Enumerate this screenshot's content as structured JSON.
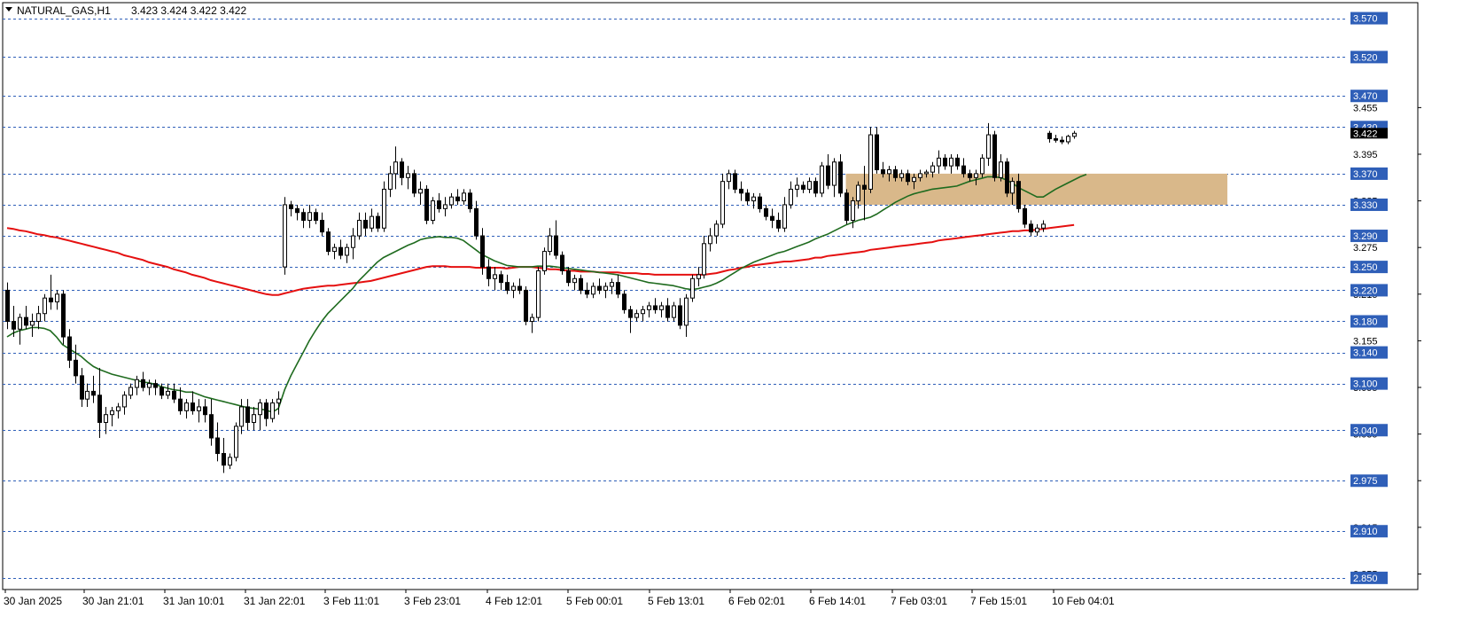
{
  "header": {
    "symbol": "NATURAL_GAS,H1",
    "ohlc": "3.423 3.424 3.422 3.422"
  },
  "colors": {
    "up_candle": "#ffffff",
    "down_candle": "#000000",
    "ma_fast": "#1f6b1f",
    "ma_slow": "#e51010",
    "level_line": "#2f5fb8",
    "level_label_bg": "#2f5fb8",
    "zone_fill": "#d9b88a"
  },
  "chart_data": {
    "type": "candlestick",
    "ylim": [
      2.835,
      3.59
    ],
    "x_tick_labels": [
      "30 Jan 2025",
      "30 Jan 21:01",
      "31 Jan 10:01",
      "31 Jan 22:01",
      "3 Feb 11:01",
      "3 Feb 23:01",
      "4 Feb 12:01",
      "5 Feb 00:01",
      "5 Feb 13:01",
      "6 Feb 02:01",
      "6 Feb 14:01",
      "7 Feb 03:01",
      "7 Feb 15:01",
      "10 Feb 04:01"
    ],
    "y_tick_labels": [
      "3.455",
      "3.395",
      "3.335",
      "3.275",
      "3.215",
      "3.155",
      "3.095",
      "3.035",
      "2.975",
      "2.915",
      "2.855"
    ],
    "level_labels": [
      "3.570",
      "3.520",
      "3.470",
      "3.430",
      "3.370",
      "3.330",
      "3.290",
      "3.250",
      "3.220",
      "3.180",
      "3.140",
      "3.100",
      "3.040",
      "2.975",
      "2.910",
      "2.850"
    ],
    "current_price_label": "3.422",
    "level_values": [
      3.57,
      3.52,
      3.47,
      3.43,
      3.37,
      3.33,
      3.29,
      3.25,
      3.22,
      3.18,
      3.14,
      3.1,
      3.04,
      2.975,
      2.91,
      2.85
    ],
    "zone": {
      "low": 3.33,
      "high": 3.37,
      "start_index": 136,
      "end_index": 172
    },
    "candles": [
      [
        3.22,
        3.23,
        3.17,
        3.18
      ],
      [
        3.18,
        3.2,
        3.16,
        3.17
      ],
      [
        3.17,
        3.19,
        3.15,
        3.185
      ],
      [
        3.185,
        3.2,
        3.17,
        3.175
      ],
      [
        3.175,
        3.19,
        3.16,
        3.18
      ],
      [
        3.18,
        3.2,
        3.17,
        3.19
      ],
      [
        3.19,
        3.215,
        3.18,
        3.21
      ],
      [
        3.21,
        3.24,
        3.195,
        3.205
      ],
      [
        3.205,
        3.22,
        3.195,
        3.215
      ],
      [
        3.215,
        3.22,
        3.15,
        3.16
      ],
      [
        3.16,
        3.17,
        3.12,
        3.13
      ],
      [
        3.13,
        3.15,
        3.1,
        3.11
      ],
      [
        3.11,
        3.12,
        3.07,
        3.08
      ],
      [
        3.08,
        3.1,
        3.07,
        3.09
      ],
      [
        3.09,
        3.11,
        3.075,
        3.085
      ],
      [
        3.085,
        3.12,
        3.03,
        3.05
      ],
      [
        3.05,
        3.07,
        3.035,
        3.06
      ],
      [
        3.06,
        3.07,
        3.045,
        3.065
      ],
      [
        3.065,
        3.075,
        3.055,
        3.07
      ],
      [
        3.07,
        3.09,
        3.06,
        3.085
      ],
      [
        3.085,
        3.1,
        3.08,
        3.095
      ],
      [
        3.095,
        3.11,
        3.085,
        3.105
      ],
      [
        3.105,
        3.115,
        3.09,
        3.095
      ],
      [
        3.095,
        3.105,
        3.085,
        3.1
      ],
      [
        3.1,
        3.105,
        3.085,
        3.095
      ],
      [
        3.095,
        3.1,
        3.08,
        3.085
      ],
      [
        3.085,
        3.1,
        3.08,
        3.09
      ],
      [
        3.09,
        3.1,
        3.075,
        3.08
      ],
      [
        3.08,
        3.095,
        3.06,
        3.065
      ],
      [
        3.065,
        3.08,
        3.055,
        3.075
      ],
      [
        3.075,
        3.09,
        3.06,
        3.065
      ],
      [
        3.065,
        3.08,
        3.05,
        3.07
      ],
      [
        3.07,
        3.08,
        3.05,
        3.06
      ],
      [
        3.06,
        3.08,
        3.02,
        3.03
      ],
      [
        3.03,
        3.05,
        3.0,
        3.01
      ],
      [
        3.01,
        3.03,
        2.985,
        2.995
      ],
      [
        2.995,
        3.01,
        2.99,
        3.005
      ],
      [
        3.005,
        3.05,
        3.0,
        3.045
      ],
      [
        3.045,
        3.08,
        3.035,
        3.07
      ],
      [
        3.07,
        3.08,
        3.04,
        3.05
      ],
      [
        3.05,
        3.07,
        3.04,
        3.06
      ],
      [
        3.06,
        3.08,
        3.04,
        3.075
      ],
      [
        3.075,
        3.08,
        3.045,
        3.055
      ],
      [
        3.055,
        3.08,
        3.05,
        3.075
      ],
      [
        3.075,
        3.09,
        3.06,
        3.08
      ],
      [
        3.25,
        3.34,
        3.24,
        3.33
      ],
      [
        3.33,
        3.335,
        3.315,
        3.325
      ],
      [
        3.325,
        3.33,
        3.31,
        3.32
      ],
      [
        3.32,
        3.325,
        3.3,
        3.31
      ],
      [
        3.31,
        3.33,
        3.3,
        3.32
      ],
      [
        3.32,
        3.325,
        3.305,
        3.31
      ],
      [
        3.31,
        3.32,
        3.29,
        3.295
      ],
      [
        3.295,
        3.3,
        3.265,
        3.27
      ],
      [
        3.27,
        3.28,
        3.26,
        3.275
      ],
      [
        3.275,
        3.285,
        3.26,
        3.265
      ],
      [
        3.265,
        3.28,
        3.255,
        3.275
      ],
      [
        3.275,
        3.3,
        3.26,
        3.29
      ],
      [
        3.29,
        3.32,
        3.285,
        3.31
      ],
      [
        3.31,
        3.32,
        3.29,
        3.3
      ],
      [
        3.3,
        3.325,
        3.295,
        3.315
      ],
      [
        3.315,
        3.32,
        3.295,
        3.3
      ],
      [
        3.3,
        3.36,
        3.295,
        3.35
      ],
      [
        3.35,
        3.38,
        3.34,
        3.37
      ],
      [
        3.37,
        3.405,
        3.35,
        3.385
      ],
      [
        3.385,
        3.39,
        3.355,
        3.365
      ],
      [
        3.365,
        3.38,
        3.35,
        3.37
      ],
      [
        3.37,
        3.375,
        3.34,
        3.345
      ],
      [
        3.345,
        3.36,
        3.33,
        3.35
      ],
      [
        3.35,
        3.355,
        3.305,
        3.31
      ],
      [
        3.31,
        3.34,
        3.305,
        3.335
      ],
      [
        3.335,
        3.345,
        3.32,
        3.325
      ],
      [
        3.325,
        3.34,
        3.315,
        3.33
      ],
      [
        3.33,
        3.345,
        3.325,
        3.34
      ],
      [
        3.34,
        3.35,
        3.33,
        3.335
      ],
      [
        3.335,
        3.35,
        3.33,
        3.345
      ],
      [
        3.345,
        3.35,
        3.32,
        3.325
      ],
      [
        3.325,
        3.335,
        3.285,
        3.29
      ],
      [
        3.29,
        3.3,
        3.24,
        3.25
      ],
      [
        3.25,
        3.26,
        3.225,
        3.235
      ],
      [
        3.235,
        3.25,
        3.22,
        3.24
      ],
      [
        3.24,
        3.245,
        3.22,
        3.23
      ],
      [
        3.23,
        3.24,
        3.215,
        3.22
      ],
      [
        3.22,
        3.23,
        3.21,
        3.225
      ],
      [
        3.225,
        3.235,
        3.215,
        3.22
      ],
      [
        3.22,
        3.225,
        3.175,
        3.18
      ],
      [
        3.18,
        3.19,
        3.165,
        3.185
      ],
      [
        3.185,
        3.25,
        3.18,
        3.245
      ],
      [
        3.245,
        3.275,
        3.24,
        3.27
      ],
      [
        3.27,
        3.3,
        3.265,
        3.29
      ],
      [
        3.29,
        3.31,
        3.26,
        3.265
      ],
      [
        3.265,
        3.27,
        3.24,
        3.245
      ],
      [
        3.245,
        3.25,
        3.225,
        3.23
      ],
      [
        3.23,
        3.24,
        3.22,
        3.235
      ],
      [
        3.235,
        3.24,
        3.215,
        3.22
      ],
      [
        3.22,
        3.23,
        3.21,
        3.215
      ],
      [
        3.215,
        3.23,
        3.21,
        3.225
      ],
      [
        3.225,
        3.235,
        3.215,
        3.22
      ],
      [
        3.22,
        3.23,
        3.21,
        3.225
      ],
      [
        3.225,
        3.235,
        3.215,
        3.23
      ],
      [
        3.23,
        3.24,
        3.21,
        3.215
      ],
      [
        3.215,
        3.22,
        3.19,
        3.195
      ],
      [
        3.195,
        3.2,
        3.165,
        3.185
      ],
      [
        3.185,
        3.195,
        3.18,
        3.19
      ],
      [
        3.19,
        3.2,
        3.18,
        3.195
      ],
      [
        3.195,
        3.205,
        3.185,
        3.2
      ],
      [
        3.2,
        3.21,
        3.19,
        3.195
      ],
      [
        3.195,
        3.205,
        3.185,
        3.2
      ],
      [
        3.2,
        3.21,
        3.18,
        3.185
      ],
      [
        3.185,
        3.205,
        3.18,
        3.2
      ],
      [
        3.2,
        3.21,
        3.17,
        3.175
      ],
      [
        3.175,
        3.215,
        3.16,
        3.21
      ],
      [
        3.21,
        3.24,
        3.205,
        3.235
      ],
      [
        3.235,
        3.25,
        3.225,
        3.24
      ],
      [
        3.24,
        3.29,
        3.235,
        3.28
      ],
      [
        3.28,
        3.3,
        3.27,
        3.29
      ],
      [
        3.29,
        3.31,
        3.28,
        3.305
      ],
      [
        3.305,
        3.37,
        3.3,
        3.36
      ],
      [
        3.36,
        3.375,
        3.35,
        3.37
      ],
      [
        3.37,
        3.375,
        3.345,
        3.35
      ],
      [
        3.35,
        3.36,
        3.335,
        3.345
      ],
      [
        3.345,
        3.35,
        3.33,
        3.335
      ],
      [
        3.335,
        3.345,
        3.325,
        3.34
      ],
      [
        3.34,
        3.345,
        3.32,
        3.325
      ],
      [
        3.325,
        3.33,
        3.31,
        3.315
      ],
      [
        3.315,
        3.325,
        3.3,
        3.31
      ],
      [
        3.31,
        3.32,
        3.295,
        3.3
      ],
      [
        3.3,
        3.34,
        3.295,
        3.33
      ],
      [
        3.33,
        3.36,
        3.325,
        3.35
      ],
      [
        3.35,
        3.365,
        3.34,
        3.355
      ],
      [
        3.355,
        3.36,
        3.345,
        3.35
      ],
      [
        3.35,
        3.365,
        3.345,
        3.36
      ],
      [
        3.36,
        3.365,
        3.34,
        3.345
      ],
      [
        3.345,
        3.385,
        3.34,
        3.38
      ],
      [
        3.38,
        3.395,
        3.35,
        3.355
      ],
      [
        3.355,
        3.39,
        3.34,
        3.385
      ],
      [
        3.385,
        3.395,
        3.34,
        3.345
      ],
      [
        3.345,
        3.35,
        3.305,
        3.31
      ],
      [
        3.31,
        3.34,
        3.3,
        3.335
      ],
      [
        3.335,
        3.36,
        3.325,
        3.355
      ],
      [
        3.355,
        3.38,
        3.31,
        3.35
      ],
      [
        3.35,
        3.43,
        3.345,
        3.42
      ],
      [
        3.42,
        3.43,
        3.37,
        3.375
      ],
      [
        3.375,
        3.385,
        3.365,
        3.37
      ],
      [
        3.37,
        3.38,
        3.36,
        3.375
      ],
      [
        3.375,
        3.38,
        3.36,
        3.365
      ],
      [
        3.365,
        3.375,
        3.36,
        3.37
      ],
      [
        3.37,
        3.375,
        3.355,
        3.36
      ],
      [
        3.36,
        3.37,
        3.35,
        3.365
      ],
      [
        3.365,
        3.375,
        3.36,
        3.37
      ],
      [
        3.37,
        3.375,
        3.365,
        3.372
      ],
      [
        3.372,
        3.385,
        3.365,
        3.38
      ],
      [
        3.38,
        3.4,
        3.37,
        3.39
      ],
      [
        3.39,
        3.395,
        3.375,
        3.38
      ],
      [
        3.38,
        3.395,
        3.37,
        3.39
      ],
      [
        3.39,
        3.395,
        3.375,
        3.38
      ],
      [
        3.38,
        3.39,
        3.365,
        3.37
      ],
      [
        3.37,
        3.375,
        3.36,
        3.365
      ],
      [
        3.365,
        3.375,
        3.355,
        3.37
      ],
      [
        3.37,
        3.395,
        3.365,
        3.39
      ],
      [
        3.39,
        3.435,
        3.38,
        3.42
      ],
      [
        3.42,
        3.425,
        3.36,
        3.365
      ],
      [
        3.365,
        3.395,
        3.36,
        3.385
      ],
      [
        3.385,
        3.39,
        3.34,
        3.345
      ],
      [
        3.345,
        3.365,
        3.33,
        3.36
      ],
      [
        3.36,
        3.37,
        3.32,
        3.325
      ],
      [
        3.325,
        3.33,
        3.3,
        3.305
      ],
      [
        3.305,
        3.31,
        3.29,
        3.295
      ],
      [
        3.295,
        3.305,
        3.29,
        3.3
      ],
      [
        3.3,
        3.31,
        3.295,
        3.305
      ],
      [
        3.422,
        3.425,
        3.41,
        3.415
      ],
      [
        3.415,
        3.42,
        3.41,
        3.413
      ],
      [
        3.413,
        3.418,
        3.408,
        3.411
      ],
      [
        3.411,
        3.42,
        3.408,
        3.418
      ],
      [
        3.418,
        3.425,
        3.415,
        3.422
      ]
    ],
    "ma_fast": [
      3.16,
      3.165,
      3.168,
      3.17,
      3.172,
      3.172,
      3.171,
      3.168,
      3.16,
      3.15,
      3.145,
      3.14,
      3.135,
      3.128,
      3.122,
      3.118,
      3.115,
      3.112,
      3.11,
      3.108,
      3.106,
      3.104,
      3.102,
      3.101,
      3.099,
      3.096,
      3.094,
      3.092,
      3.091,
      3.089,
      3.089,
      3.086,
      3.083,
      3.081,
      3.079,
      3.077,
      3.075,
      3.073,
      3.071,
      3.069,
      3.068,
      3.067,
      3.066,
      3.063,
      3.068,
      3.092,
      3.11,
      3.125,
      3.14,
      3.155,
      3.168,
      3.18,
      3.19,
      3.198,
      3.206,
      3.214,
      3.222,
      3.232,
      3.24,
      3.248,
      3.256,
      3.262,
      3.266,
      3.27,
      3.274,
      3.278,
      3.281,
      3.285,
      3.287,
      3.288,
      3.289,
      3.288,
      3.288,
      3.287,
      3.284,
      3.278,
      3.272,
      3.266,
      3.262,
      3.258,
      3.255,
      3.252,
      3.251,
      3.25,
      3.25,
      3.25,
      3.251,
      3.251,
      3.251,
      3.25,
      3.249,
      3.248,
      3.247,
      3.246,
      3.245,
      3.244,
      3.243,
      3.242,
      3.241,
      3.24,
      3.238,
      3.236,
      3.234,
      3.232,
      3.23,
      3.229,
      3.228,
      3.227,
      3.226,
      3.224,
      3.222,
      3.221,
      3.222,
      3.224,
      3.226,
      3.229,
      3.233,
      3.238,
      3.243,
      3.248,
      3.252,
      3.256,
      3.259,
      3.262,
      3.265,
      3.268,
      3.27,
      3.273,
      3.276,
      3.279,
      3.282,
      3.286,
      3.289,
      3.292,
      3.296,
      3.3,
      3.304,
      3.307,
      3.31,
      3.312,
      3.314,
      3.318,
      3.323,
      3.328,
      3.333,
      3.337,
      3.341,
      3.344,
      3.346,
      3.348,
      3.35,
      3.351,
      3.352,
      3.353,
      3.354,
      3.357,
      3.36,
      3.362,
      3.364,
      3.366,
      3.366,
      3.365,
      3.362,
      3.358,
      3.352,
      3.348,
      3.344,
      3.34,
      3.34,
      3.345,
      3.35,
      3.354,
      3.358,
      3.362,
      3.366,
      3.369
    ],
    "ma_slow": [
      3.3,
      3.299,
      3.297,
      3.296,
      3.294,
      3.292,
      3.291,
      3.289,
      3.288,
      3.286,
      3.284,
      3.282,
      3.28,
      3.278,
      3.276,
      3.274,
      3.272,
      3.27,
      3.268,
      3.265,
      3.263,
      3.261,
      3.259,
      3.256,
      3.254,
      3.252,
      3.25,
      3.247,
      3.245,
      3.243,
      3.24,
      3.238,
      3.236,
      3.233,
      3.231,
      3.229,
      3.227,
      3.225,
      3.223,
      3.221,
      3.219,
      3.217,
      3.215,
      3.214,
      3.214,
      3.216,
      3.218,
      3.22,
      3.222,
      3.223,
      3.224,
      3.225,
      3.226,
      3.226,
      3.227,
      3.228,
      3.229,
      3.23,
      3.231,
      3.232,
      3.234,
      3.236,
      3.238,
      3.24,
      3.242,
      3.244,
      3.246,
      3.248,
      3.25,
      3.251,
      3.251,
      3.251,
      3.25,
      3.25,
      3.25,
      3.25,
      3.249,
      3.249,
      3.249,
      3.249,
      3.249,
      3.248,
      3.249,
      3.25,
      3.25,
      3.25,
      3.249,
      3.248,
      3.247,
      3.247,
      3.246,
      3.245,
      3.245,
      3.244,
      3.244,
      3.244,
      3.243,
      3.243,
      3.243,
      3.243,
      3.242,
      3.242,
      3.242,
      3.241,
      3.241,
      3.24,
      3.24,
      3.24,
      3.24,
      3.24,
      3.24,
      3.24,
      3.24,
      3.24,
      3.241,
      3.242,
      3.244,
      3.246,
      3.247,
      3.249,
      3.25,
      3.252,
      3.253,
      3.254,
      3.255,
      3.256,
      3.257,
      3.257,
      3.258,
      3.259,
      3.26,
      3.262,
      3.262,
      3.264,
      3.265,
      3.266,
      3.267,
      3.268,
      3.269,
      3.27,
      3.272,
      3.273,
      3.274,
      3.275,
      3.276,
      3.277,
      3.278,
      3.279,
      3.28,
      3.281,
      3.282,
      3.284,
      3.285,
      3.286,
      3.287,
      3.288,
      3.289,
      3.29,
      3.291,
      3.292,
      3.293,
      3.294,
      3.295,
      3.296,
      3.296,
      3.297,
      3.297,
      3.298,
      3.299,
      3.3,
      3.301,
      3.302,
      3.303,
      3.304
    ]
  }
}
